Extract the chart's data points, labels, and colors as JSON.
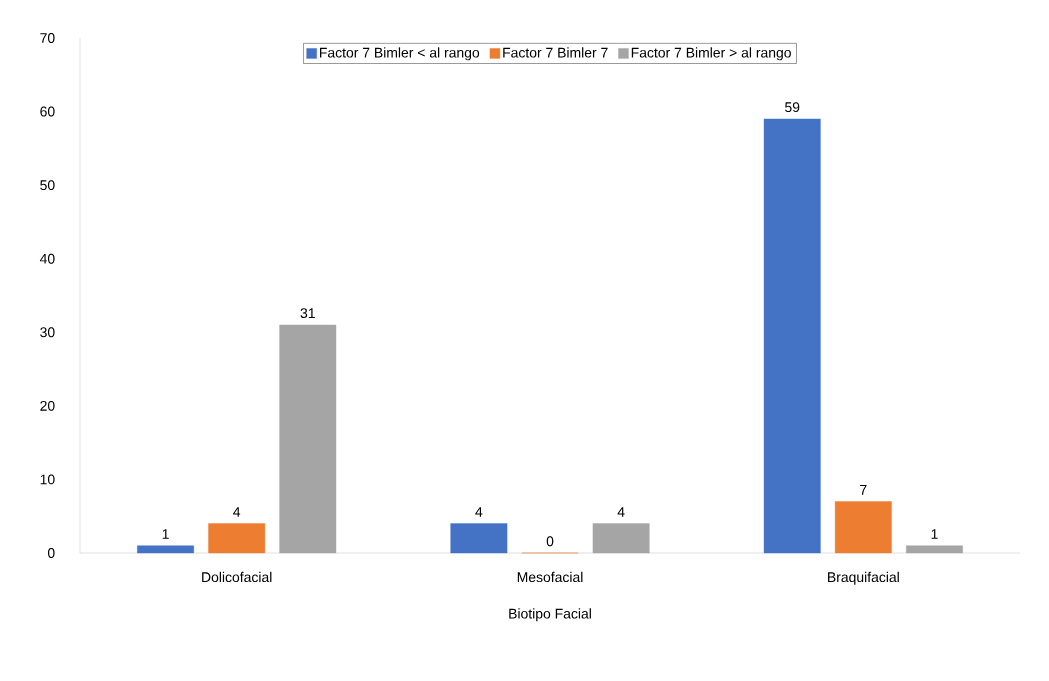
{
  "chart_data": {
    "type": "bar",
    "xlabel": "Biotipo Facial",
    "categories": [
      "Dolicofacial",
      "Mesofacial",
      "Braquifacial"
    ],
    "series": [
      {
        "name": "Factor 7 Bimler < al rango",
        "color": "#4472c4",
        "values": [
          1,
          4,
          59
        ]
      },
      {
        "name": "Factor 7 Bimler 7",
        "color": "#ed7d31",
        "values": [
          4,
          0,
          7
        ]
      },
      {
        "name": "Factor 7 Bimler > al rango",
        "color": "#a5a5a5",
        "values": [
          31,
          4,
          1
        ]
      }
    ],
    "ylim": [
      0,
      70
    ],
    "yticks": [
      0,
      10,
      20,
      30,
      40,
      50,
      60,
      70
    ],
    "data_labels": true,
    "legend": "top",
    "grid": false
  }
}
